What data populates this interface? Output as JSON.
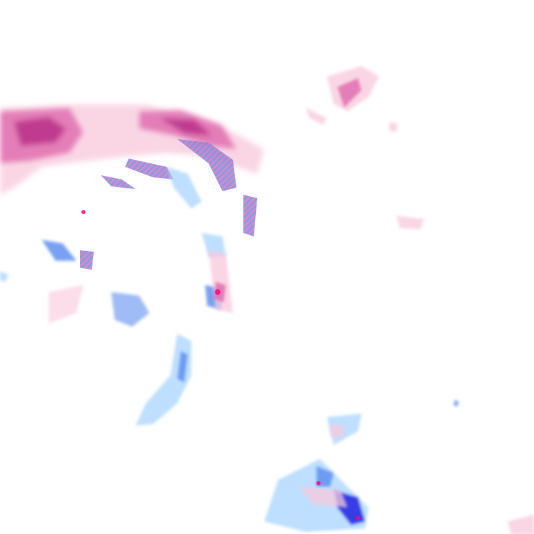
{
  "map": {
    "type": "precipitation-radar-tile",
    "background_color": "#ffffff",
    "colors": {
      "snow_light": "#f8c8dc",
      "snow_moderate": "#e070b0",
      "snow_heavy": "#b8308a",
      "rain_light": "#a8d4ff",
      "rain_moderate": "#6090f0",
      "rain_heavy": "#2020e0",
      "mixed": "#c070c0",
      "extreme": "#ff0080"
    }
  }
}
